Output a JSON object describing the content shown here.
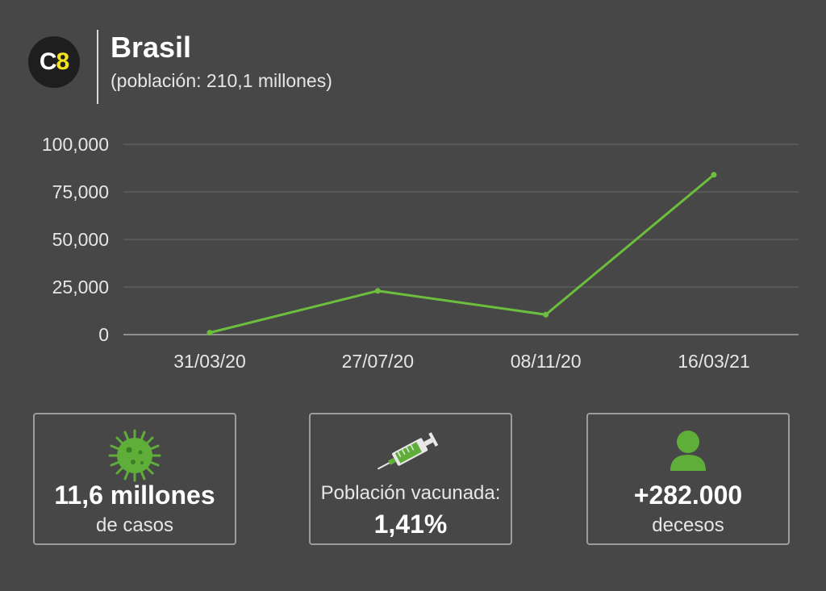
{
  "header": {
    "logo_letter": "C",
    "logo_number": "8",
    "title": "Brasil",
    "subtitle": "(población: 210,1 millones)"
  },
  "colors": {
    "background": "#474747",
    "line": "#6cbf3d",
    "accent_green": "#5fae3a",
    "logo_yellow": "#f4e21f"
  },
  "chart_data": {
    "type": "line",
    "categories": [
      "31/03/20",
      "27/07/20",
      "08/11/20",
      "16/03/21"
    ],
    "series": [
      {
        "values": [
          1000,
          23000,
          10500,
          84000
        ]
      }
    ],
    "ylim": [
      0,
      100000
    ],
    "yticks": [
      0,
      25000,
      50000,
      75000,
      100000
    ],
    "ytick_labels": [
      "0",
      "25,000",
      "50,000",
      "75,000",
      "100,000"
    ],
    "grid": true,
    "legend": "none"
  },
  "cards": [
    {
      "icon": "virus-icon",
      "big": "11,6 millones",
      "small": "de casos"
    },
    {
      "icon": "syringe-icon",
      "small": "Población vacunada:",
      "big": "1,41%"
    },
    {
      "icon": "person-icon",
      "big": "+282.000",
      "small": "decesos"
    }
  ]
}
